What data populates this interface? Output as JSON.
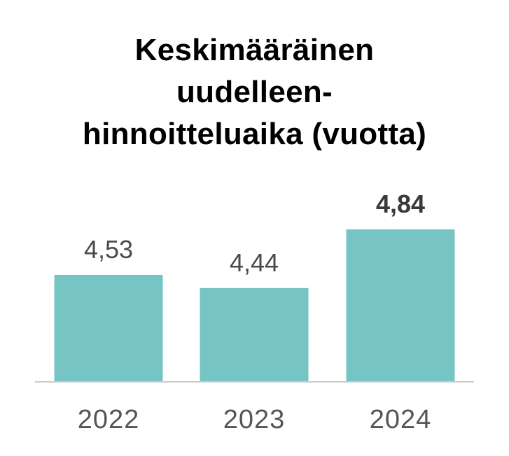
{
  "chart_data": {
    "type": "bar",
    "title_lines": [
      "Keskimääräinen",
      "uudelleen-",
      "hinnoitteluaika (vuotta)"
    ],
    "categories": [
      "2022",
      "2023",
      "2024"
    ],
    "values": [
      4.53,
      4.44,
      4.84
    ],
    "value_labels": [
      "4,53",
      "4,44",
      "4,84"
    ],
    "highlight_index": 2,
    "bar_color": "#76c4c4",
    "axis_color": "#cccccc",
    "xlabel": "",
    "ylabel": "",
    "ylim": [
      3.8,
      4.9
    ],
    "grid": false,
    "legend": "none"
  }
}
